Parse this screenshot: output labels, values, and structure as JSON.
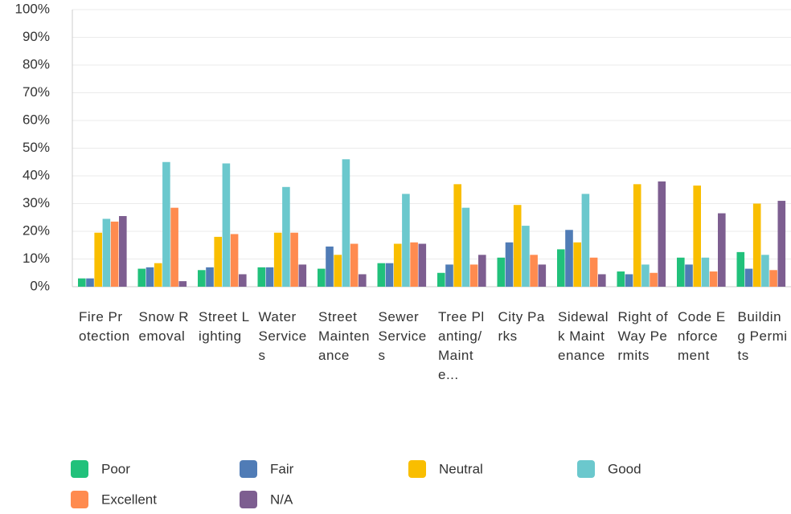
{
  "chart_data": {
    "type": "bar",
    "categories": [
      "Fire Protection",
      "Snow Removal",
      "Street Lighting",
      "Water Services",
      "Street Maintenance",
      "Sewer Services",
      "Tree Planting/Mainte...",
      "City Parks",
      "Sidewalk Maintenance",
      "Right of Way Permits",
      "Code Enforcement",
      "Building Permits"
    ],
    "series": [
      {
        "name": "Poor",
        "color": "#21c17b",
        "values": [
          3,
          6.5,
          6,
          7,
          6.5,
          8.5,
          5,
          10.5,
          13.5,
          5.5,
          10.5,
          12.5
        ]
      },
      {
        "name": "Fair",
        "color": "#507cb6",
        "values": [
          3,
          7,
          7,
          7,
          14.5,
          8.5,
          8,
          16,
          20.5,
          4.5,
          8,
          6.5
        ]
      },
      {
        "name": "Neutral",
        "color": "#f9be00",
        "values": [
          19.5,
          8.5,
          18,
          19.5,
          11.5,
          15.5,
          37,
          29.5,
          16,
          37,
          36.5,
          30
        ]
      },
      {
        "name": "Good",
        "color": "#6bc8cd",
        "values": [
          24.5,
          45,
          44.5,
          36,
          46,
          33.5,
          28.5,
          22,
          33.5,
          8,
          10.5,
          11.5
        ]
      },
      {
        "name": "Excellent",
        "color": "#ff8b4f",
        "values": [
          23.5,
          28.5,
          19,
          19.5,
          15.5,
          16,
          8,
          11.5,
          10.5,
          5,
          5.5,
          6
        ]
      },
      {
        "name": "N/A",
        "color": "#7d5e90",
        "values": [
          25.5,
          2,
          4.5,
          8,
          4.5,
          15.5,
          11.5,
          8,
          4.5,
          38,
          26.5,
          31
        ]
      }
    ],
    "ylim": [
      0,
      100
    ],
    "yticks": [
      {
        "value": 0,
        "label": "0%"
      },
      {
        "value": 10,
        "label": "10%"
      },
      {
        "value": 20,
        "label": "20%"
      },
      {
        "value": 30,
        "label": "30%"
      },
      {
        "value": 40,
        "label": "40%"
      },
      {
        "value": 50,
        "label": "50%"
      },
      {
        "value": 60,
        "label": "60%"
      },
      {
        "value": 70,
        "label": "70%"
      },
      {
        "value": 80,
        "label": "80%"
      },
      {
        "value": 90,
        "label": "90%"
      },
      {
        "value": 100,
        "label": "100%"
      }
    ],
    "grid": true,
    "legend": "bottom"
  }
}
